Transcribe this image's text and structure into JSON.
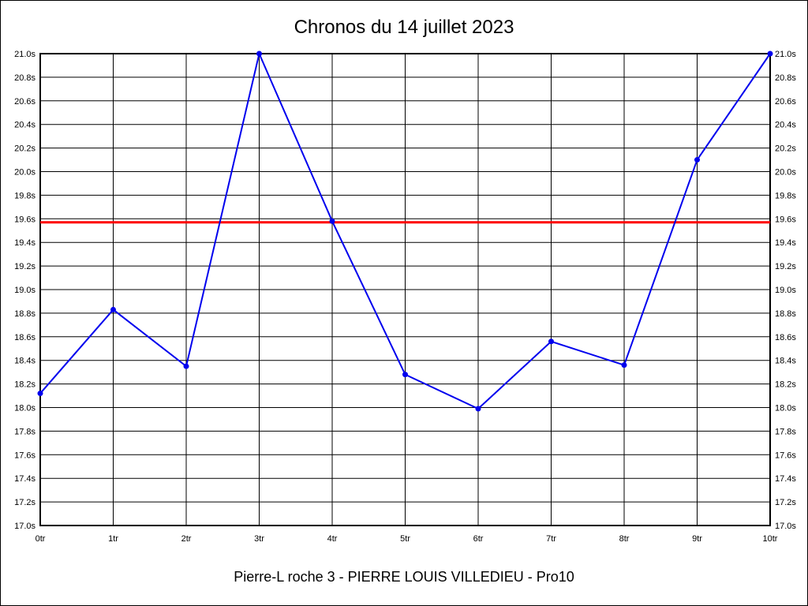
{
  "title": "Chronos du 14 juillet 2023",
  "footer": "Pierre-L roche 3 - PIERRE LOUIS VILLEDIEU - Pro10",
  "chart_data": {
    "type": "line",
    "title": "Chronos du 14 juillet 2023",
    "subtitle": "Pierre-L roche 3 - PIERRE LOUIS VILLEDIEU - Pro10",
    "categories": [
      "0tr",
      "1tr",
      "2tr",
      "3tr",
      "4tr",
      "5tr",
      "6tr",
      "7tr",
      "8tr",
      "9tr",
      "10tr"
    ],
    "series": [
      {
        "name": "chrono",
        "color": "#0000ee",
        "values": [
          18.12,
          18.83,
          18.35,
          21.0,
          19.58,
          18.28,
          17.99,
          18.56,
          18.36,
          20.1,
          21.0
        ]
      }
    ],
    "reference_line": {
      "value": 19.57,
      "color": "#ff0000"
    },
    "ylim": [
      17.0,
      21.0
    ],
    "y_tick_step": 0.2,
    "y_tick_suffix": "s",
    "xlabel": "",
    "ylabel": "",
    "grid": true,
    "grid_color": "#000000",
    "axis_color": "#000000",
    "legend": "none",
    "y_axis_labels_sides": "both"
  }
}
